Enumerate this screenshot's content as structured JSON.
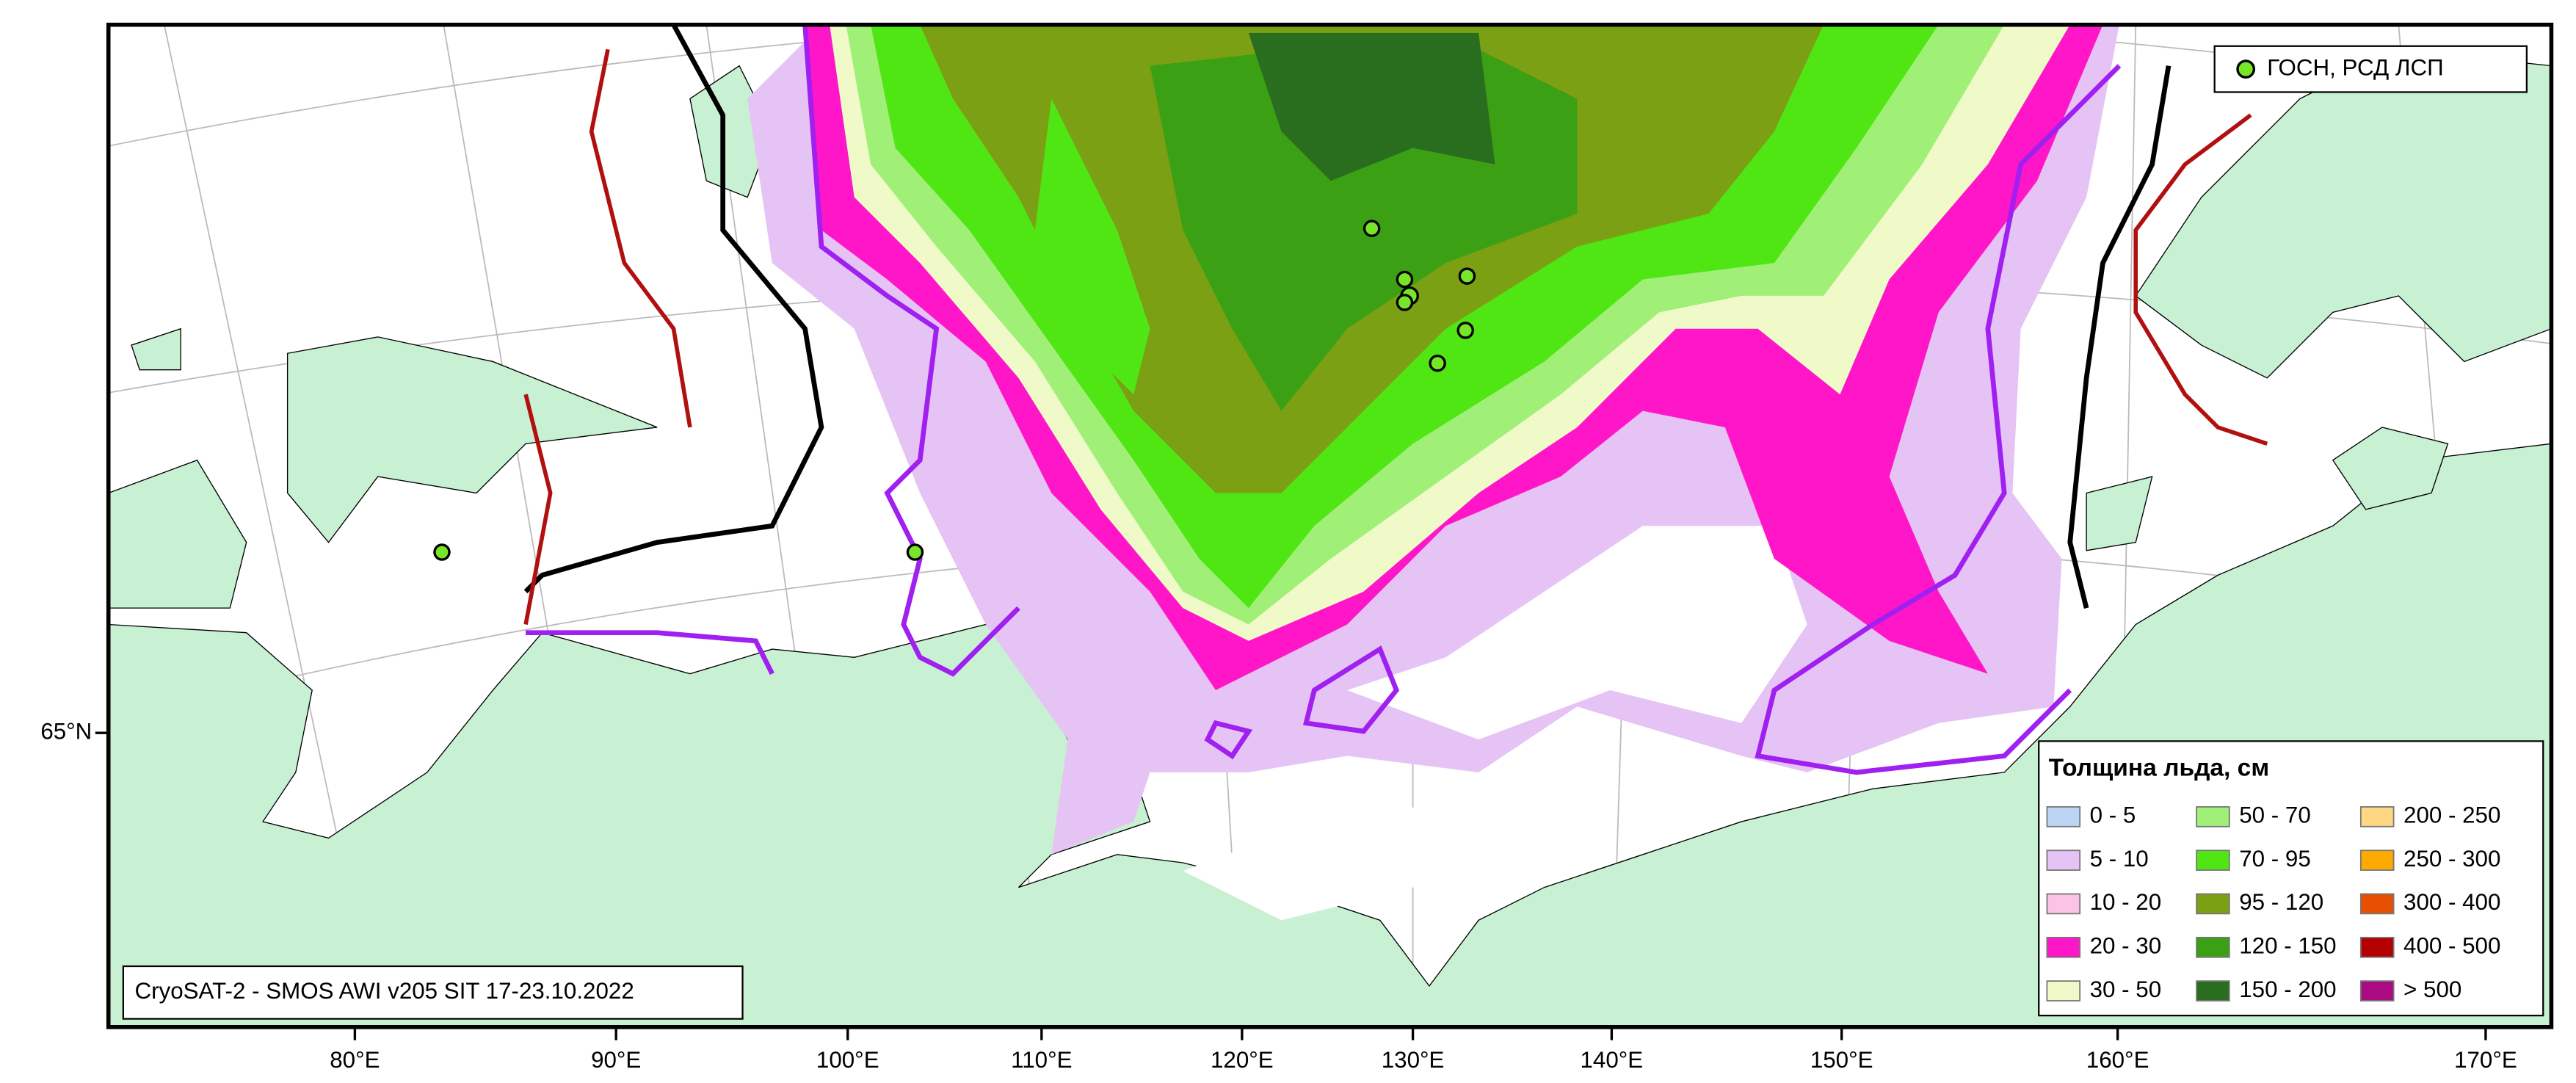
{
  "map": {
    "point_legend": "ГОСН, РСД ЛСП",
    "source": "CryoSAT-2 - SMOS AWI v205 SIT 17-23.10.2022",
    "longitude_labels": [
      "80°E",
      "90°E",
      "100°E",
      "110°E",
      "120°E",
      "130°E",
      "140°E",
      "150°E",
      "160°E",
      "170°E"
    ],
    "latitude_labels": [
      "65°N"
    ],
    "legend": {
      "title": "Толщина льда, см",
      "items": [
        {
          "label": "0 - 5",
          "color": "#bcd5f5"
        },
        {
          "label": "5 - 10",
          "color": "#e6c3f5"
        },
        {
          "label": "10 - 20",
          "color": "#fbc3e6"
        },
        {
          "label": "20 - 30",
          "color": "#ff16c8"
        },
        {
          "label": "30 - 50",
          "color": "#f0fac8"
        },
        {
          "label": "50 - 70",
          "color": "#a0f078"
        },
        {
          "label": "70 - 95",
          "color": "#50e614"
        },
        {
          "label": "95 - 120",
          "color": "#7ca014"
        },
        {
          "label": "120 - 150",
          "color": "#3ca014"
        },
        {
          "label": "150 - 200",
          "color": "#286e1e"
        },
        {
          "label": "200 - 250",
          "color": "#ffd782"
        },
        {
          "label": "250 - 300",
          "color": "#ffaa00"
        },
        {
          "label": "300 - 400",
          "color": "#e65000"
        },
        {
          "label": "400 - 500",
          "color": "#b40000"
        },
        {
          "label": "> 500",
          "color": "#aa0a82"
        }
      ]
    }
  }
}
